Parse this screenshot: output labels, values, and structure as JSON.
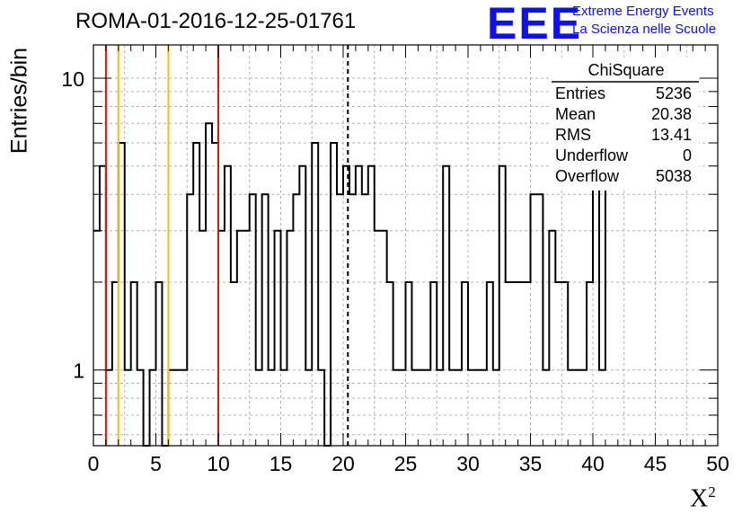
{
  "title": "ROMA-01-2016-12-25-01761",
  "logo": {
    "mark": "EEE",
    "line1": "Extreme Energy Events",
    "line2": "La Scienza nelle Scuole"
  },
  "colors": {
    "histogram": "#000000",
    "red_line": "#e8100c",
    "yellow_line": "#f4c20d",
    "grid": "#b0b0b0",
    "logo": "#1010ee"
  },
  "stats": {
    "title": "ChiSquare",
    "rows": [
      {
        "label": "Entries",
        "value": "5236"
      },
      {
        "label": "Mean",
        "value": "20.38"
      },
      {
        "label": "RMS",
        "value": "13.41"
      },
      {
        "label": "Underflow",
        "value": "0"
      },
      {
        "label": "Overflow",
        "value": "5038"
      }
    ]
  },
  "chart_data": {
    "type": "bar",
    "histogram_style": "step",
    "ylabel": "Entries/bin",
    "xlabel": "X",
    "xlabel_sup": "2",
    "xlim": [
      0,
      50
    ],
    "ylim": [
      0.55,
      13
    ],
    "yscale": "log",
    "grid": true,
    "bin_width": 0.5,
    "x_ticks": [
      "0",
      "5",
      "10",
      "15",
      "20",
      "25",
      "30",
      "35",
      "40",
      "45",
      "50"
    ],
    "y_ticks": [
      "1",
      "10"
    ],
    "values": [
      3,
      5,
      1,
      2,
      6,
      1,
      2,
      1,
      0,
      1,
      2,
      0,
      1,
      1,
      1,
      4,
      6,
      3,
      7,
      6,
      3,
      5,
      2,
      3,
      3,
      4,
      1,
      4,
      1,
      3,
      1,
      3,
      4,
      5,
      1,
      6,
      1,
      0,
      6,
      4,
      5,
      4,
      5,
      4,
      5,
      3,
      3,
      2,
      1,
      1,
      2,
      1,
      1,
      1,
      2,
      1,
      5,
      1,
      1,
      2,
      1,
      1,
      1,
      2,
      1,
      5,
      2,
      2,
      2,
      2,
      4,
      4,
      1,
      3,
      2,
      2,
      1,
      1,
      1,
      2,
      5,
      1,
      6
    ],
    "vertical_lines": [
      {
        "x": 1,
        "color": "red"
      },
      {
        "x": 2,
        "color": "yellow"
      },
      {
        "x": 6,
        "color": "yellow"
      },
      {
        "x": 10,
        "color": "red"
      },
      {
        "x": 20.38,
        "color": "black-dashed"
      }
    ]
  }
}
